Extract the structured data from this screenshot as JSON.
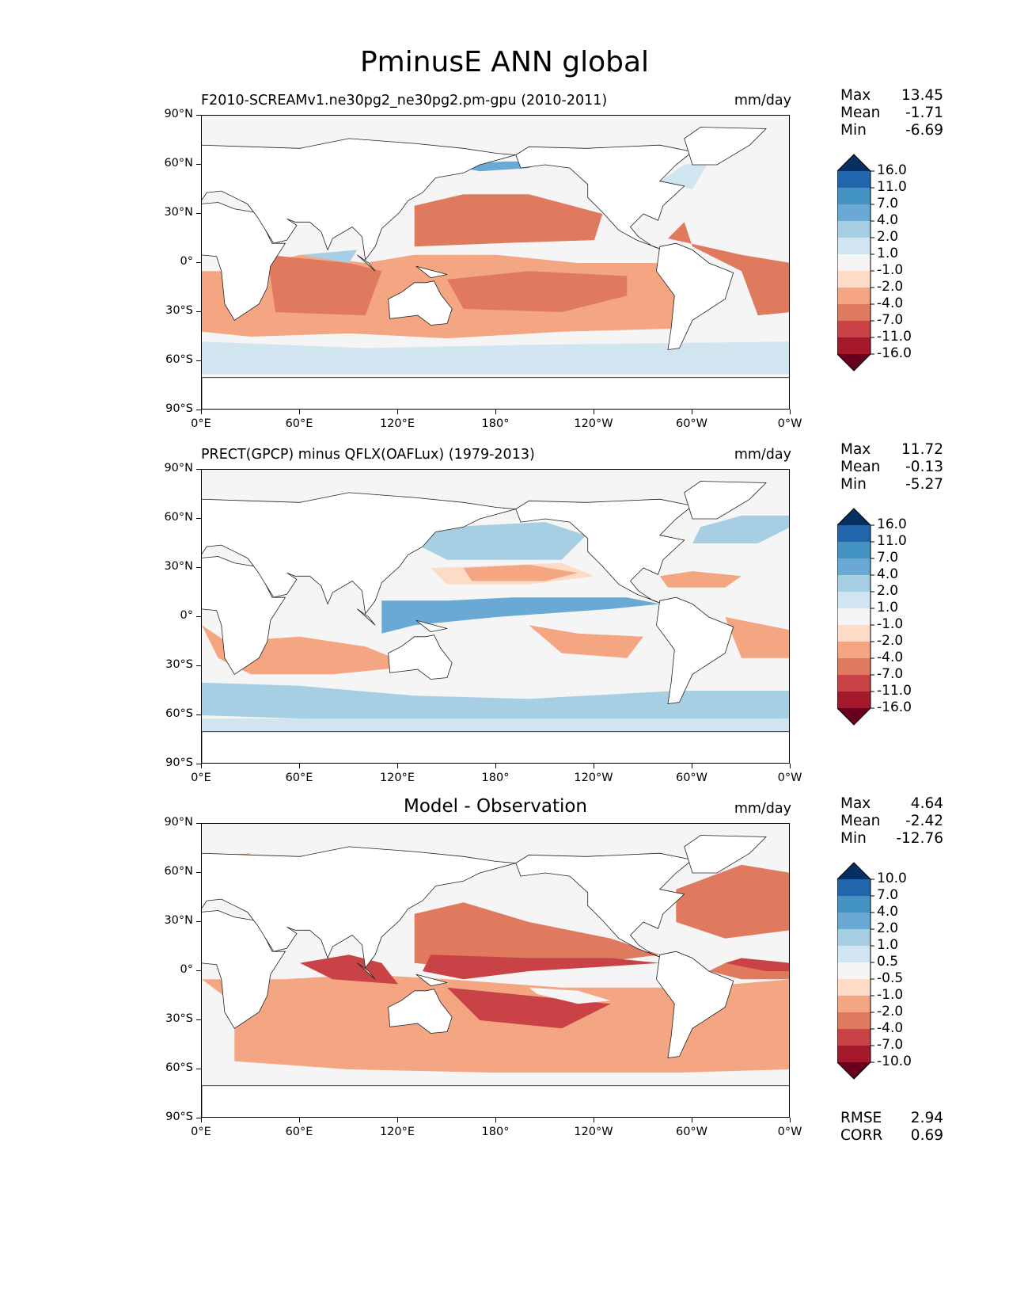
{
  "figure_title": "PminusE ANN global",
  "lat_labels": [
    "90°N",
    "60°N",
    "30°N",
    "0°",
    "30°S",
    "60°S",
    "90°S"
  ],
  "lon_labels": [
    "0°E",
    "60°E",
    "120°E",
    "180°",
    "120°W",
    "60°W",
    "0°W"
  ],
  "panels": [
    {
      "title": "F2010-SCREAMv1.ne30pg2_ne30pg2.pm-gpu (2010-2011)",
      "units": "mm/day",
      "stats": [
        [
          "Max",
          "13.45"
        ],
        [
          "Mean",
          "-1.71"
        ],
        [
          "Min",
          "-6.69"
        ]
      ],
      "levels": [
        "16.0",
        "11.0",
        "7.0",
        "4.0",
        "2.0",
        "1.0",
        "-1.0",
        "-2.0",
        "-4.0",
        "-7.0",
        "-11.0",
        "-16.0"
      ]
    },
    {
      "title": "PRECT(GPCP) minus QFLX(OAFLux) (1979-2013)",
      "units": "mm/day",
      "stats": [
        [
          "Max",
          "11.72"
        ],
        [
          "Mean",
          "-0.13"
        ],
        [
          "Min",
          "-5.27"
        ]
      ],
      "levels": [
        "16.0",
        "11.0",
        "7.0",
        "4.0",
        "2.0",
        "1.0",
        "-1.0",
        "-2.0",
        "-4.0",
        "-7.0",
        "-11.0",
        "-16.0"
      ]
    },
    {
      "title": "Model - Observation",
      "units": "mm/day",
      "stats": [
        [
          "Max",
          "4.64"
        ],
        [
          "Mean",
          "-2.42"
        ],
        [
          "Min",
          "-12.76"
        ]
      ],
      "levels": [
        "10.0",
        "7.0",
        "4.0",
        "2.0",
        "1.0",
        "0.5",
        "-0.5",
        "-1.0",
        "-2.0",
        "-4.0",
        "-7.0",
        "-10.0"
      ],
      "metrics": [
        [
          "RMSE",
          "2.94"
        ],
        [
          "CORR",
          "0.69"
        ]
      ]
    }
  ],
  "colorbar_colors": [
    "#053061",
    "#2166ac",
    "#4393c3",
    "#6aa9d4",
    "#a7cfe4",
    "#d1e5f0",
    "#f5f5f5",
    "#fddbc7",
    "#f4a582",
    "#e07a5f",
    "#c84246",
    "#a5172a",
    "#67001f"
  ]
}
